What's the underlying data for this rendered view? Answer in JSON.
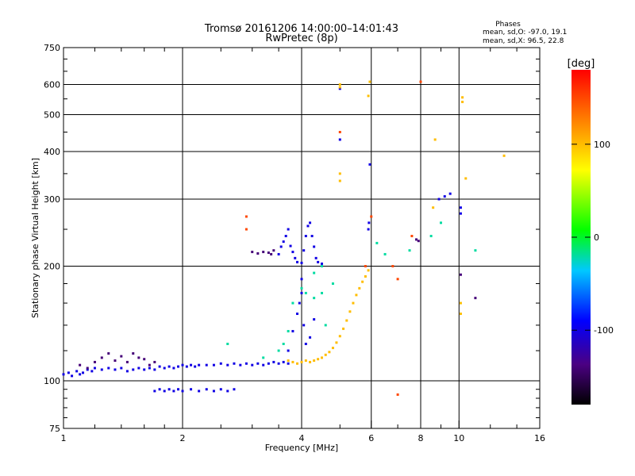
{
  "chart_data": {
    "type": "scatter",
    "title": "Tromsø 20161206 14:00:00–14:01:43",
    "subtitle": "RwPretec (8p)",
    "stats": {
      "heading": "Phases",
      "line_o": "mean, sd,O: -97.0, 19.1",
      "line_x": "mean, sd,X:  96.5, 22.8"
    },
    "xlabel": "Frequency [MHz]",
    "ylabel": "Stationary phase Virtual Height [km]",
    "x_scale": "log",
    "y_scale": "log",
    "xlim": [
      1,
      16
    ],
    "ylim": [
      75,
      750
    ],
    "x_ticks": [
      1,
      2,
      4,
      6,
      8,
      10,
      16
    ],
    "x_tick_labels": [
      "1",
      "2",
      "4",
      "6",
      "8",
      "10",
      "16"
    ],
    "y_ticks": [
      75,
      100,
      200,
      300,
      400,
      500,
      600,
      750
    ],
    "y_tick_labels": [
      "75",
      "100",
      "200",
      "300",
      "400",
      "500",
      "600",
      "750"
    ],
    "grid": true,
    "colorbar": {
      "label": "[deg]",
      "min": -180,
      "max": 180,
      "ticks": [
        100,
        0,
        -100
      ],
      "tick_labels": [
        "100",
        "0",
        "-100"
      ],
      "colormap": "rainbow"
    },
    "series": [
      {
        "phase_deg": -100,
        "points": [
          [
            1.0,
            104
          ],
          [
            1.03,
            105
          ],
          [
            1.05,
            103
          ],
          [
            1.08,
            106
          ],
          [
            1.1,
            104
          ],
          [
            1.12,
            105
          ],
          [
            1.15,
            107
          ],
          [
            1.18,
            106
          ],
          [
            1.2,
            108
          ],
          [
            1.25,
            107
          ],
          [
            1.3,
            108
          ],
          [
            1.35,
            107
          ],
          [
            1.4,
            108
          ],
          [
            1.45,
            106
          ],
          [
            1.5,
            107
          ],
          [
            1.55,
            108
          ],
          [
            1.6,
            107
          ],
          [
            1.65,
            108
          ],
          [
            1.7,
            107
          ],
          [
            1.75,
            109
          ],
          [
            1.8,
            108
          ],
          [
            1.85,
            109
          ],
          [
            1.9,
            108
          ],
          [
            1.95,
            109
          ],
          [
            2.0,
            110
          ],
          [
            2.05,
            109
          ],
          [
            2.1,
            110
          ],
          [
            2.15,
            109
          ],
          [
            2.2,
            110
          ],
          [
            2.3,
            110
          ],
          [
            2.4,
            110
          ],
          [
            2.5,
            111
          ],
          [
            2.6,
            110
          ],
          [
            2.7,
            111
          ],
          [
            2.8,
            110
          ],
          [
            2.9,
            111
          ],
          [
            3.0,
            110
          ],
          [
            3.1,
            111
          ],
          [
            3.2,
            110
          ],
          [
            3.3,
            111
          ],
          [
            3.4,
            112
          ],
          [
            3.5,
            111
          ],
          [
            3.6,
            112
          ],
          [
            3.7,
            111
          ],
          [
            1.7,
            94
          ],
          [
            1.75,
            95
          ],
          [
            1.8,
            94
          ],
          [
            1.85,
            95
          ],
          [
            1.9,
            94
          ],
          [
            1.95,
            95
          ],
          [
            2.0,
            94
          ],
          [
            2.1,
            95
          ],
          [
            2.2,
            94
          ],
          [
            2.3,
            95
          ],
          [
            2.4,
            94
          ],
          [
            2.5,
            95
          ],
          [
            2.6,
            94
          ],
          [
            2.7,
            95
          ],
          [
            3.5,
            215
          ],
          [
            3.55,
            225
          ],
          [
            3.6,
            232
          ],
          [
            3.65,
            240
          ],
          [
            3.7,
            250
          ],
          [
            3.75,
            226
          ],
          [
            3.8,
            218
          ],
          [
            3.85,
            210
          ],
          [
            3.9,
            205
          ],
          [
            4.0,
            204
          ],
          [
            4.05,
            220
          ],
          [
            4.1,
            240
          ],
          [
            4.15,
            255
          ],
          [
            4.2,
            260
          ],
          [
            4.25,
            240
          ],
          [
            4.3,
            225
          ],
          [
            4.35,
            210
          ],
          [
            4.4,
            205
          ],
          [
            4.5,
            203
          ],
          [
            3.9,
            150
          ],
          [
            3.95,
            160
          ],
          [
            4.0,
            170
          ],
          [
            4.0,
            185
          ],
          [
            4.05,
            140
          ],
          [
            4.1,
            125
          ],
          [
            4.2,
            130
          ],
          [
            4.3,
            145
          ],
          [
            3.7,
            120
          ],
          [
            3.8,
            135
          ],
          [
            5.0,
            430
          ],
          [
            5.0,
            585
          ],
          [
            5.95,
            370
          ],
          [
            5.9,
            250
          ],
          [
            5.92,
            260
          ],
          [
            8.9,
            300
          ],
          [
            9.2,
            305
          ],
          [
            9.5,
            310
          ],
          [
            10.1,
            275
          ],
          [
            10.1,
            285
          ]
        ]
      },
      {
        "phase_deg": -140,
        "points": [
          [
            1.1,
            110
          ],
          [
            1.15,
            108
          ],
          [
            1.2,
            112
          ],
          [
            1.25,
            115
          ],
          [
            1.3,
            118
          ],
          [
            1.35,
            113
          ],
          [
            1.4,
            116
          ],
          [
            1.45,
            112
          ],
          [
            1.5,
            118
          ],
          [
            1.55,
            115
          ],
          [
            1.6,
            114
          ],
          [
            1.65,
            110
          ],
          [
            1.7,
            112
          ],
          [
            3.0,
            218
          ],
          [
            3.1,
            216
          ],
          [
            3.2,
            218
          ],
          [
            3.3,
            217
          ],
          [
            3.35,
            215
          ],
          [
            3.4,
            220
          ],
          [
            7.8,
            235
          ],
          [
            7.9,
            233
          ],
          [
            10.1,
            190
          ],
          [
            11.0,
            165
          ]
        ]
      },
      {
        "phase_deg": 100,
        "points": [
          [
            3.7,
            113
          ],
          [
            3.8,
            112
          ],
          [
            3.9,
            111
          ],
          [
            4.0,
            112
          ],
          [
            4.1,
            113
          ],
          [
            4.2,
            112
          ],
          [
            4.3,
            113
          ],
          [
            4.4,
            114
          ],
          [
            4.5,
            115
          ],
          [
            4.6,
            117
          ],
          [
            4.7,
            119
          ],
          [
            4.8,
            122
          ],
          [
            4.9,
            126
          ],
          [
            5.0,
            131
          ],
          [
            5.1,
            137
          ],
          [
            5.2,
            144
          ],
          [
            5.3,
            152
          ],
          [
            5.4,
            160
          ],
          [
            5.5,
            168
          ],
          [
            5.6,
            175
          ],
          [
            5.7,
            182
          ],
          [
            5.8,
            188
          ],
          [
            5.9,
            195
          ],
          [
            5.0,
            590
          ],
          [
            5.0,
            600
          ],
          [
            5.9,
            560
          ],
          [
            5.95,
            610
          ],
          [
            5.0,
            350
          ],
          [
            5.0,
            335
          ],
          [
            8.7,
            430
          ],
          [
            10.2,
            540
          ],
          [
            10.2,
            555
          ],
          [
            13.0,
            390
          ],
          [
            10.4,
            340
          ],
          [
            8.6,
            285
          ],
          [
            10.1,
            150
          ],
          [
            10.1,
            160
          ]
        ]
      },
      {
        "phase_deg": -20,
        "points": [
          [
            3.5,
            120
          ],
          [
            3.6,
            125
          ],
          [
            3.7,
            135
          ],
          [
            3.8,
            160
          ],
          [
            4.0,
            175
          ],
          [
            4.1,
            170
          ],
          [
            4.3,
            165
          ],
          [
            4.5,
            170
          ],
          [
            4.6,
            140
          ],
          [
            4.8,
            180
          ],
          [
            2.6,
            125
          ],
          [
            3.2,
            115
          ],
          [
            4.3,
            192
          ],
          [
            4.5,
            200
          ],
          [
            6.2,
            230
          ],
          [
            6.5,
            215
          ],
          [
            7.5,
            220
          ],
          [
            8.5,
            240
          ],
          [
            11.0,
            220
          ],
          [
            9.0,
            260
          ]
        ]
      },
      {
        "phase_deg": 150,
        "points": [
          [
            2.9,
            250
          ],
          [
            2.9,
            270
          ],
          [
            5.0,
            450
          ],
          [
            6.0,
            270
          ],
          [
            5.8,
            200
          ],
          [
            6.8,
            200
          ],
          [
            7.0,
            185
          ],
          [
            7.6,
            240
          ],
          [
            8.0,
            610
          ],
          [
            7.0,
            92
          ]
        ]
      }
    ]
  }
}
